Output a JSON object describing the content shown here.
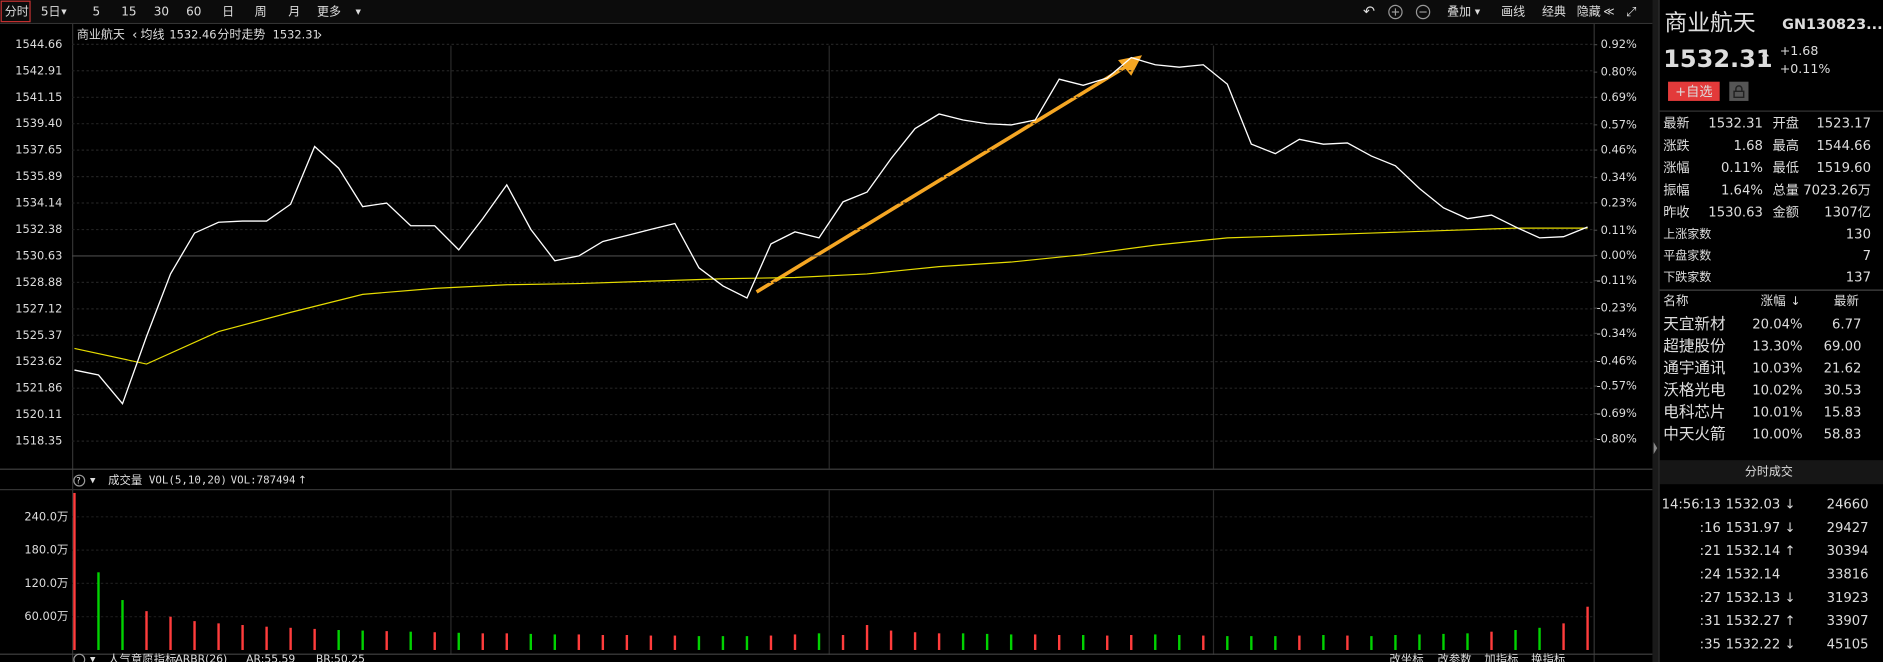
{
  "toolbar": {
    "tabs": [
      "分时",
      "5日",
      "5",
      "15",
      "30",
      "60",
      "日",
      "周",
      "月",
      "更多"
    ],
    "tools": [
      "叠加",
      "画线",
      "经典",
      "隐藏"
    ]
  },
  "chart_data": [
    {
      "type": "line",
      "title": "商业航天",
      "grid": true,
      "series": [
        {
          "name": "分时走势",
          "current": 1532.31,
          "color": "#ffffff",
          "values": [
            1523.06,
            1522.74,
            1520.83,
            1525.29,
            1529.44,
            1532.15,
            1532.86,
            1532.94,
            1532.94,
            1534.06,
            1537.89,
            1536.45,
            1533.9,
            1534.14,
            1532.63,
            1532.63,
            1531.03,
            1533.1,
            1535.34,
            1532.39,
            1530.31,
            1530.63,
            1531.59,
            1531.99,
            1532.39,
            1532.78,
            1529.84,
            1528.64,
            1527.84,
            1531.43,
            1532.23,
            1531.83,
            1534.22,
            1534.86,
            1537.09,
            1539.08,
            1540.04,
            1539.64,
            1539.4,
            1539.32,
            1539.64,
            1542.35,
            1541.95,
            1542.43,
            1543.78,
            1543.31,
            1543.15,
            1543.31,
            1542.03,
            1538.04,
            1537.41,
            1538.36,
            1538.04,
            1538.12,
            1537.25,
            1536.61,
            1535.1,
            1533.82,
            1533.1,
            1533.34,
            1532.55,
            1531.83,
            1531.91,
            1532.55
          ]
        },
        {
          "name": "均线",
          "current": 1532.46,
          "color": "#e6dc00",
          "values": [
            1524.5,
            1523.46,
            1525.61,
            1526.89,
            1528.08,
            1528.48,
            1528.72,
            1528.8,
            1528.96,
            1529.12,
            1529.2,
            1529.44,
            1529.92,
            1530.23,
            1530.71,
            1531.35,
            1531.83,
            1531.99,
            1532.15,
            1532.31,
            1532.47,
            1532.47
          ]
        }
      ],
      "ylim": [
        1516.53,
        1546.01
      ],
      "yticks": [
        1544.66,
        1542.91,
        1541.15,
        {
          "value": 1539.4,
          "label": "1539.40"
        },
        1537.65,
        1535.89,
        1534.14,
        1532.38,
        1530.63,
        1528.88,
        1527.12,
        1525.37,
        1523.62,
        1521.86,
        1520.11,
        1518.35
      ],
      "y2lim": [
        -0.93,
        1.01
      ],
      "y2ticks": [
        {
          "value": 0.92,
          "label": "0.92%"
        },
        {
          "value": 0.8,
          "label": "0.80%"
        },
        {
          "value": 0.69,
          "label": "0.69%"
        },
        {
          "value": 0.57,
          "label": "0.57%"
        },
        {
          "value": 0.46,
          "label": "0.46%"
        },
        {
          "value": 0.34,
          "label": "0.34%"
        },
        {
          "value": 0.23,
          "label": "0.23%"
        },
        {
          "value": 0.11,
          "label": "0.11%"
        },
        {
          "value": 0,
          "label": "0.00%"
        },
        {
          "value": -0.11,
          "label": "-0.11%"
        },
        {
          "value": -0.23,
          "label": "-0.23%"
        },
        {
          "value": -0.34,
          "label": "-0.34%"
        },
        {
          "value": -0.46,
          "label": "-0.46%"
        },
        {
          "value": -0.57,
          "label": "-0.57%"
        },
        {
          "value": -0.69,
          "label": "-0.69%"
        },
        {
          "value": -0.8,
          "label": "-0.80%"
        }
      ]
    },
    {
      "type": "bar",
      "title": "成交量",
      "indicator": "VOL(5,10,20)",
      "readout": "VOL:787494",
      "up_color": "#ff3c3c",
      "down_color": "#00d200",
      "values": [
        283,
        140,
        90,
        70,
        60,
        52,
        48,
        45,
        42,
        40,
        38,
        36,
        35,
        34,
        33,
        32,
        31,
        30,
        30,
        29,
        28,
        28,
        27,
        27,
        26,
        26,
        25,
        25,
        25,
        26,
        28,
        30,
        27,
        45,
        35,
        32,
        30,
        30,
        29,
        28,
        28,
        27,
        27,
        26,
        27,
        28,
        27,
        26,
        25,
        25,
        25,
        26,
        27,
        26,
        25,
        27,
        28,
        29,
        30,
        33,
        36,
        40,
        48,
        78
      ],
      "ylim": [
        0,
        288
      ],
      "yticks": [
        {
          "value": 240,
          "label": "240.0万"
        },
        {
          "value": 180,
          "label": "180.0万"
        },
        {
          "value": 120,
          "label": "120.0万"
        },
        {
          "value": 60,
          "label": "60.00万"
        }
      ]
    }
  ],
  "indicator_panel": {
    "title": "人气意愿指标",
    "params": "ARBR(26)",
    "readouts": [
      "AR:55.59",
      "BR:50.25"
    ],
    "buttons": [
      "改坐标",
      "改参数",
      "加指标",
      "换指标"
    ]
  },
  "quote": {
    "name": "商业航天",
    "code": "GN130823...",
    "price": "1532.31",
    "change": "+1.68",
    "change_pct": "+0.11%",
    "watch_button": "+自选",
    "stats": [
      [
        {
          "label": "最新",
          "value": "1532.31"
        },
        {
          "label": "开盘",
          "value": "1523.17"
        }
      ],
      [
        {
          "label": "涨跌",
          "value": "1.68"
        },
        {
          "label": "最高",
          "value": "1544.66"
        }
      ],
      [
        {
          "label": "涨幅",
          "value": "0.11%"
        },
        {
          "label": "最低",
          "value": "1519.60"
        }
      ],
      [
        {
          "label": "振幅",
          "value": "1.64%"
        },
        {
          "label": "总量",
          "value": "7023.26万"
        }
      ],
      [
        {
          "label": "昨收",
          "value": "1530.63"
        },
        {
          "label": "金额",
          "value": "1307亿"
        }
      ]
    ],
    "counts": [
      {
        "label": "上涨家数",
        "value": "130"
      },
      {
        "label": "平盘家数",
        "value": "7"
      },
      {
        "label": "下跌家数",
        "value": "137"
      }
    ]
  },
  "constituents": {
    "columns": [
      "名称",
      "涨幅",
      "最新"
    ],
    "rows": [
      [
        "天宜新材",
        "20.04%",
        "6.77"
      ],
      [
        "超捷股份",
        "13.30%",
        "69.00"
      ],
      [
        "通宇通讯",
        "10.03%",
        "21.62"
      ],
      [
        "沃格光电",
        "10.02%",
        "30.53"
      ],
      [
        "电科芯片",
        "10.01%",
        "15.83"
      ],
      [
        "中天火箭",
        "10.00%",
        "58.83"
      ]
    ]
  },
  "trades": {
    "title": "分时成交",
    "rows": [
      {
        "time": "14:56:13",
        "price": "1532.03",
        "dir": "down",
        "volume": "24660"
      },
      {
        "time": ":16",
        "price": "1531.97",
        "dir": "down",
        "volume": "29427"
      },
      {
        "time": ":21",
        "price": "1532.14",
        "dir": "up",
        "volume": "30394"
      },
      {
        "time": ":24",
        "price": "1532.14",
        "dir": null,
        "volume": "33816"
      },
      {
        "time": ":27",
        "price": "1532.13",
        "dir": "down",
        "volume": "31923"
      },
      {
        "time": ":31",
        "price": "1532.27",
        "dir": "up",
        "volume": "33907"
      },
      {
        "time": ":35",
        "price": "1532.22",
        "dir": "down",
        "volume": "45105"
      }
    ]
  }
}
